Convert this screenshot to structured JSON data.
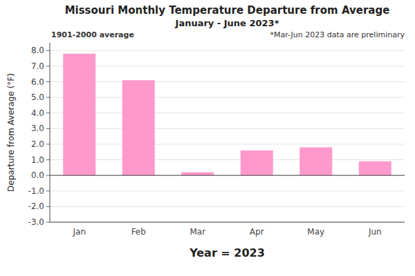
{
  "chart_data": {
    "type": "bar",
    "title": "Missouri Monthly Temperature Departure from Average",
    "subtitle": "January - June 2023*",
    "x_label": "Year = 2023",
    "y_label": "Departure from Average (°F)",
    "categories": [
      "Jan",
      "Feb",
      "Mar",
      "Apr",
      "May",
      "Jun"
    ],
    "values": [
      7.8,
      6.1,
      0.2,
      1.6,
      1.8,
      0.9
    ],
    "color": "#FF99CC",
    "ylim": [
      -3.0,
      8.5
    ],
    "yticks": [
      {
        "value": -3.0,
        "label": "-3.0"
      },
      {
        "value": -2.0,
        "label": "-2.0"
      },
      {
        "value": -1.0,
        "label": "-1.0"
      },
      {
        "value": 0.0,
        "label": "0.0"
      },
      {
        "value": 1.0,
        "label": "1.0"
      },
      {
        "value": 2.0,
        "label": "2.0"
      },
      {
        "value": 3.0,
        "label": "3.0"
      },
      {
        "value": 4.0,
        "label": "4.0"
      },
      {
        "value": 5.0,
        "label": "5.0"
      },
      {
        "value": 6.0,
        "label": "6.0"
      },
      {
        "value": 7.0,
        "label": "7.0"
      },
      {
        "value": 8.0,
        "label": "8.0"
      }
    ],
    "grid": true,
    "annotations": [
      "1901-2000 average",
      "*Mar-Jun 2023 data are preliminary"
    ]
  }
}
